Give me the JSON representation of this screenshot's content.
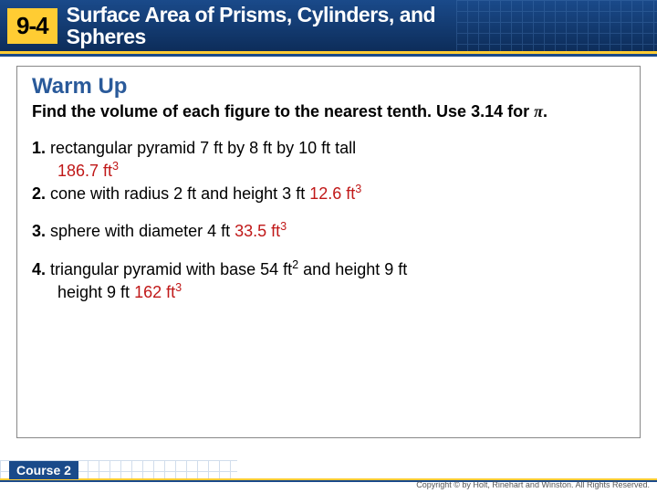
{
  "header": {
    "lesson_number": "9-4",
    "title_line1": "Surface Area of Prisms, Cylinders, and",
    "title_line2": "Spheres"
  },
  "colors": {
    "header_top": "#1a4a8a",
    "header_bottom": "#0d2d5a",
    "accent_yellow": "#ffcc33",
    "accent_blue": "#1a4a8a",
    "warmup_color": "#2a5a9a",
    "answer_color": "#c01818",
    "grid_color": "#4a7ab5"
  },
  "warmup": {
    "heading": "Warm Up",
    "instruction_a": "Find the volume of each figure to the nearest tenth. Use 3.14 for ",
    "instruction_b": "."
  },
  "problems": [
    {
      "num": "1.",
      "text": " rectangular pyramid 7 ft by 8 ft by 10 ft tall",
      "answer": "186.7 ft",
      "exp": "3",
      "answer_below": true
    },
    {
      "num": "2.",
      "text": " cone with radius 2 ft and height 3 ft  ",
      "answer": "12.6 ft",
      "exp": "3",
      "answer_below": false
    },
    {
      "num": "3.",
      "text": " sphere with diameter 4 ft  ",
      "answer": "33.5 ft",
      "exp": "3",
      "answer_below": false
    },
    {
      "num": "4.",
      "text_a": " triangular pyramid with base 54 ft",
      "text_a_exp": "2",
      "text_b": " and height 9 ft  ",
      "answer": "162 ft",
      "exp": "3",
      "answer_below": false,
      "multiline": true
    }
  ],
  "footer": {
    "course": "Course 2",
    "copyright": "Copyright © by Holt, Rinehart and Winston. All Rights Reserved."
  }
}
